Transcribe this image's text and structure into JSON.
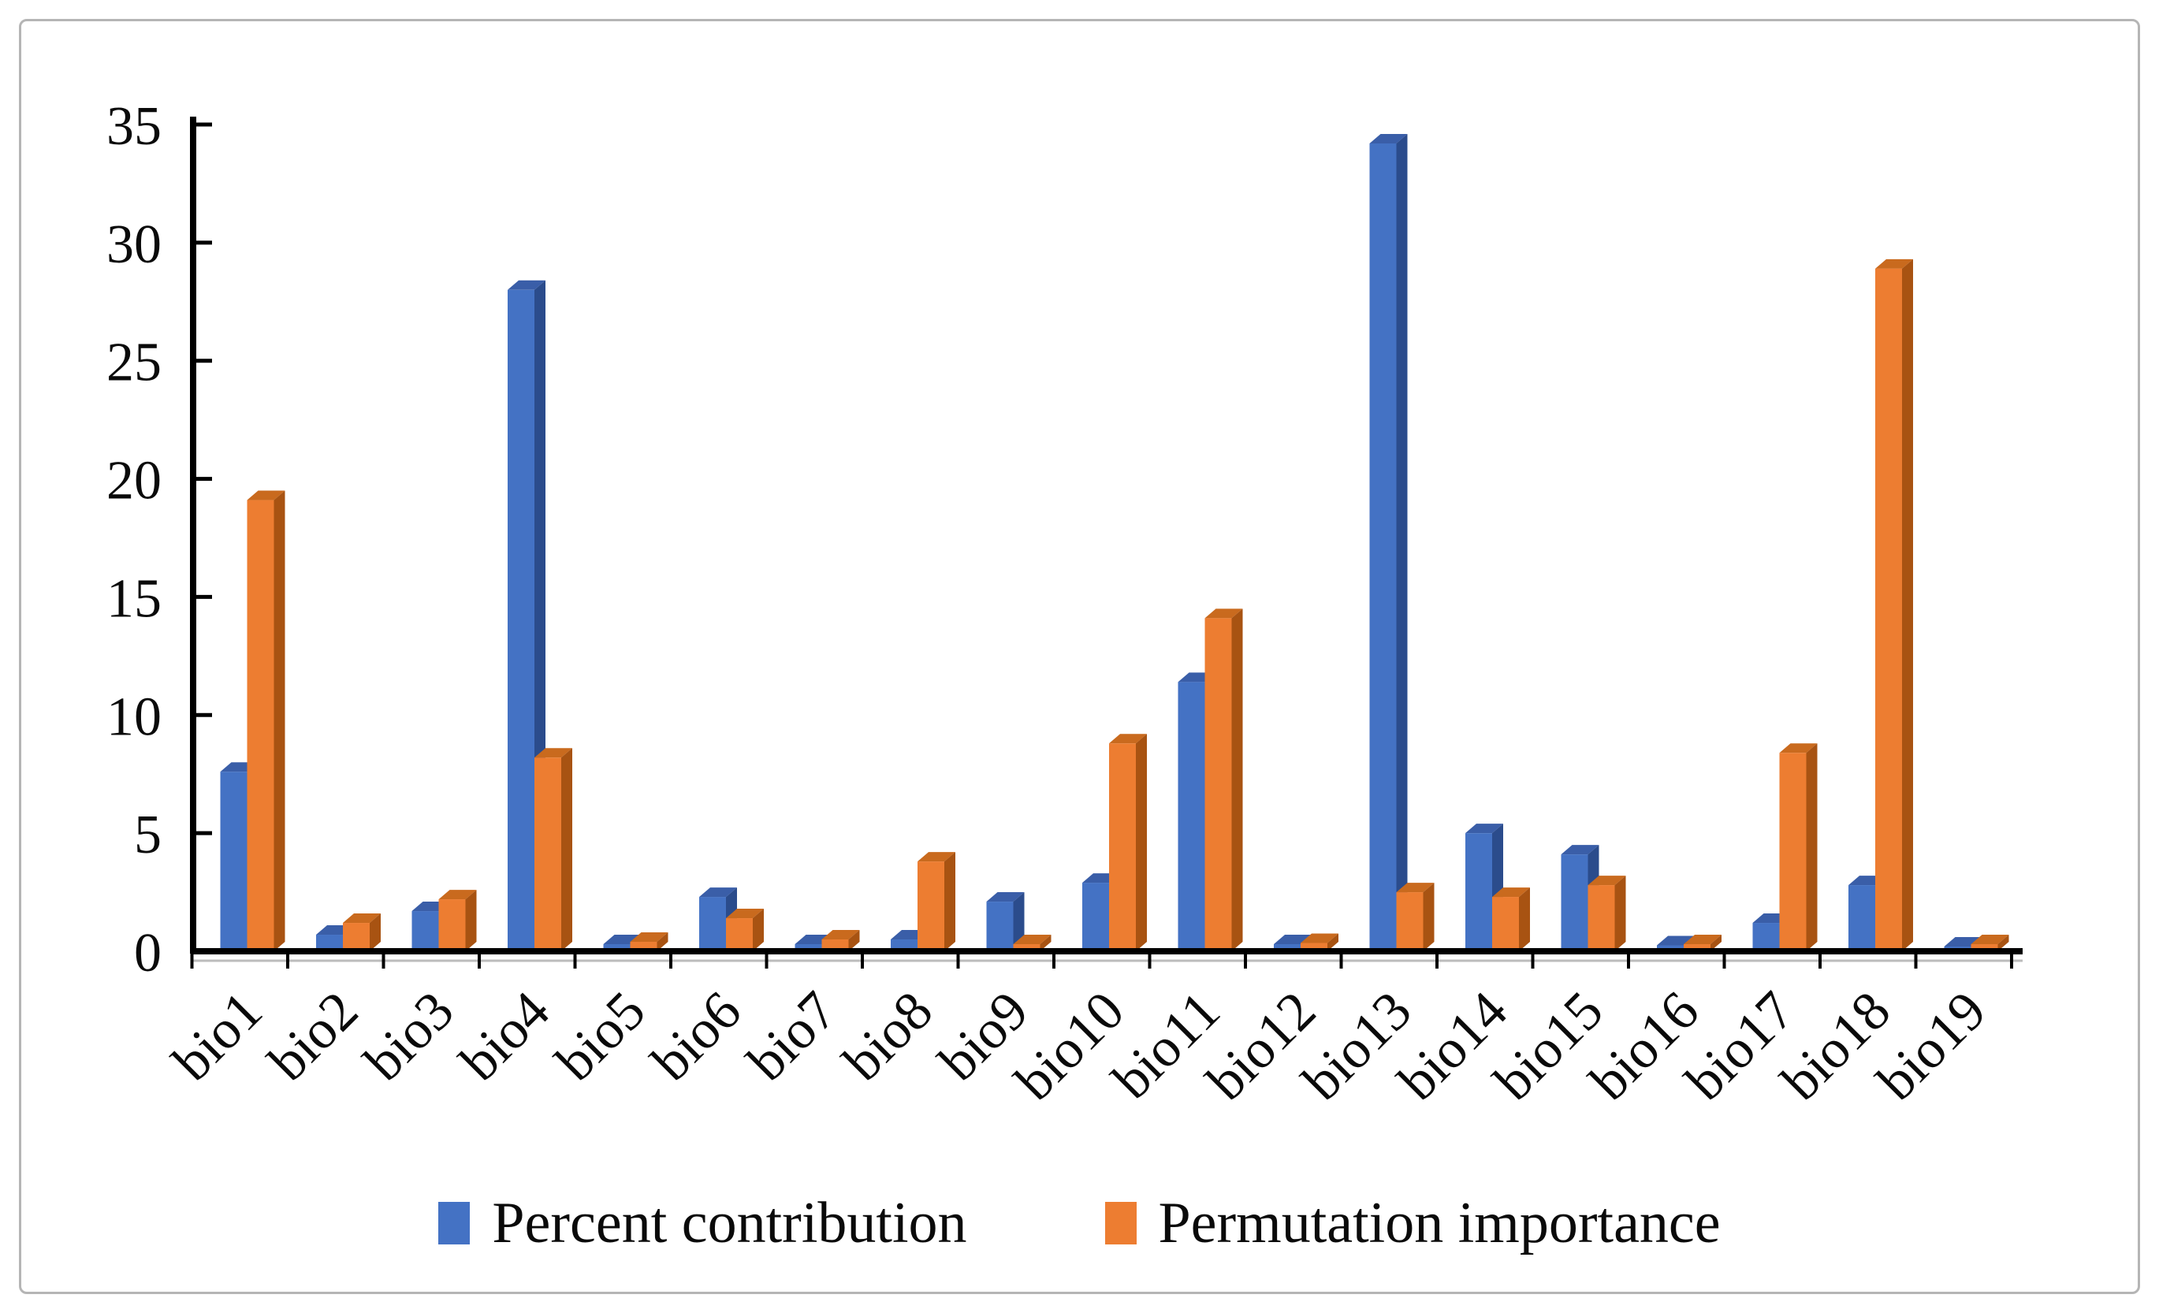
{
  "figure": {
    "background": "#ffffff",
    "frame_border_color": "#b5b5b5",
    "axis_color": "#000000",
    "text_color": "#0a0a0a"
  },
  "chart_data": {
    "type": "bar",
    "style": "3d-clustered-column",
    "title": "",
    "xlabel": "",
    "ylabel": "",
    "grid": false,
    "legend_position": "bottom",
    "categories": [
      "bio1",
      "bio2",
      "bio3",
      "bio4",
      "bio5",
      "bio6",
      "bio7",
      "bio8",
      "bio9",
      "bio10",
      "bio11",
      "bio12",
      "bio13",
      "bio14",
      "bio15",
      "bio16",
      "bio17",
      "bio18",
      "bio19"
    ],
    "series": [
      {
        "name": "Percent contribution",
        "color": "#4472C4",
        "color_top": "#3a5ea8",
        "color_side": "#2b4c8c",
        "values": [
          7.6,
          0.7,
          1.7,
          28.0,
          0.3,
          2.3,
          0.3,
          0.5,
          2.1,
          2.9,
          11.4,
          0.3,
          34.2,
          5.0,
          4.1,
          0.25,
          1.2,
          2.8,
          0.2
        ]
      },
      {
        "name": "Permutation importance",
        "color": "#ED7D31",
        "color_top": "#c96a1e",
        "color_side": "#a85312",
        "values": [
          19.1,
          1.2,
          2.2,
          8.2,
          0.4,
          1.4,
          0.5,
          3.8,
          0.3,
          8.8,
          14.1,
          0.35,
          2.5,
          2.3,
          2.8,
          0.3,
          8.4,
          28.9,
          0.3
        ]
      }
    ],
    "yaxis": {
      "min": 0,
      "max": 35,
      "step": 5,
      "ticks": [
        0,
        5,
        10,
        15,
        20,
        25,
        30,
        35
      ]
    }
  }
}
